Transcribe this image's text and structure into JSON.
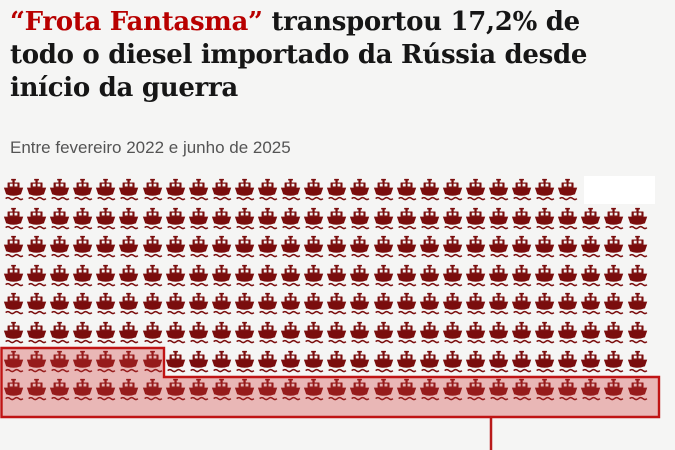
{
  "header": {
    "title_highlight": "“Frota Fantasma”",
    "title_rest": " transportou 17,2% de todo o diesel importado da Rússia desde início da guerra",
    "subtitle": "Entre fevereiro 2022 e junho de 2025"
  },
  "colors": {
    "background": "#f5f5f4",
    "title_highlight": "#b80000",
    "title_text": "#161616",
    "subtitle_text": "#545454",
    "ship": "#7a0d0d",
    "highlight_fill": "rgba(209,58,58,0.33)",
    "highlight_border": "#c01414",
    "callout_line": "#b81a1a",
    "mask": "#ffffff"
  },
  "chart_data": {
    "type": "pictogram",
    "title": "“Frota Fantasma” transportou 17,2% de todo o diesel importado da Rússia desde início da guerra",
    "subtitle": "Entre fevereiro 2022 e junho de 2025",
    "icon": "ship",
    "grid": {
      "rows": 8,
      "cols": 28,
      "top_row_icons": 25,
      "total_icons": 221
    },
    "series": [
      {
        "name": "Frota Fantasma",
        "percent": 17.2,
        "icons": 35
      },
      {
        "name": "",
        "percent": 82.8,
        "icons": 186
      }
    ],
    "highlight": {
      "last_row_icons": 28,
      "partial_row_icons": 7
    },
    "legend_position": "none",
    "annotation": "red translucent box with red border around highlighted ships, callout line extending to bottom edge"
  }
}
